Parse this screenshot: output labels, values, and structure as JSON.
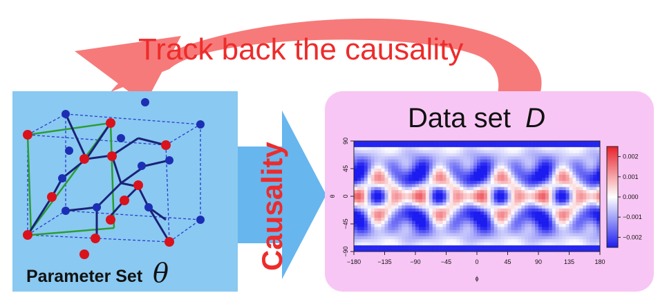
{
  "feedback_arrow": {
    "label": "Track back the causality",
    "color": "#f77a7a",
    "text_color": "#ee2b2b"
  },
  "forward_arrow": {
    "label": "Causality",
    "color": "#67b6ee",
    "text_color": "#ee2b2b"
  },
  "parameter_panel": {
    "background": "#8ac9f1",
    "caption": "Parameter Set",
    "symbol": "θ",
    "illustration": "crystal-lattice-icon",
    "atom_colors": {
      "red": "#d9121b",
      "blue": "#1c2fb4"
    },
    "edge_colors": {
      "green": "#2b9d33",
      "navy": "#1a2378"
    }
  },
  "data_panel": {
    "background": "#f8c6f4",
    "title": "Data set",
    "symbol": "D",
    "chart_data": {
      "type": "heatmap",
      "xlabel": "ϕ",
      "ylabel": "θ",
      "xlim": [
        -180,
        180
      ],
      "ylim": [
        -90,
        90
      ],
      "xticks": [
        -180,
        -135,
        -90,
        -45,
        0,
        45,
        90,
        135,
        180
      ],
      "yticks": [
        90,
        45,
        0,
        -45,
        -90
      ],
      "colorbar": {
        "ticks": [
          "0.002",
          "0.001",
          "0.000",
          "-0.001",
          "-0.002"
        ],
        "values": [
          0.002,
          0.001,
          0.0,
          -0.001,
          -0.002
        ],
        "range": [
          -0.0025,
          0.0025
        ],
        "colors": {
          "high": "#e8202a",
          "mid": "#ffffff",
          "low": "#1c1cf0"
        }
      }
    }
  }
}
